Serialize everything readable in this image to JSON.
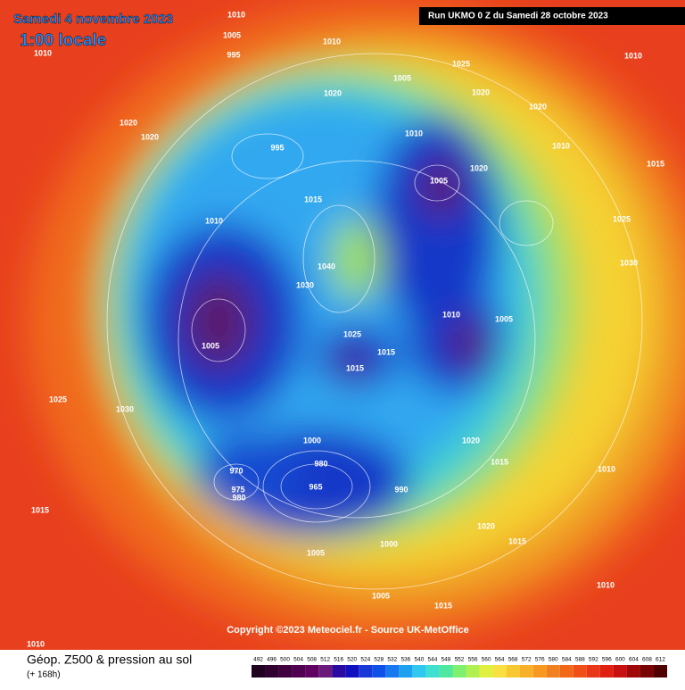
{
  "header": {
    "date": "Samedi 4 novembre 2023",
    "time": "1:00 locale",
    "run": "Run UKMO 0 Z du Samedi 28 octobre 2023"
  },
  "copyright": "Copyright ©2023 Meteociel.fr - Source UK-MetOffice",
  "footer": {
    "title": "Géop. Z500 & pression au sol",
    "lead": "(+ 168h)"
  },
  "colorbar": {
    "labels": [
      492,
      496,
      500,
      504,
      508,
      512,
      516,
      520,
      524,
      528,
      532,
      536,
      540,
      544,
      548,
      552,
      556,
      560,
      564,
      568,
      572,
      576,
      580,
      584,
      588,
      592,
      596,
      600,
      604,
      608,
      612
    ]
  },
  "isobar_labels": [
    "1010",
    "1005",
    "995",
    "1010",
    "1025",
    "1010",
    "1010",
    "1020",
    "1005",
    "1020",
    "1020",
    "1020",
    "1020",
    "995",
    "1010",
    "1010",
    "1015",
    "1005",
    "1020",
    "1015",
    "1010",
    "1025",
    "1030",
    "1040",
    "1030",
    "1005",
    "1025",
    "1015",
    "1015",
    "1005",
    "1010",
    "1025",
    "1030",
    "1000",
    "970",
    "975",
    "980",
    "980",
    "965",
    "990",
    "1020",
    "1015",
    "1010",
    "1020",
    "1015",
    "1000",
    "1005",
    "1015",
    "1010",
    "1005",
    "1015",
    "1010"
  ]
}
